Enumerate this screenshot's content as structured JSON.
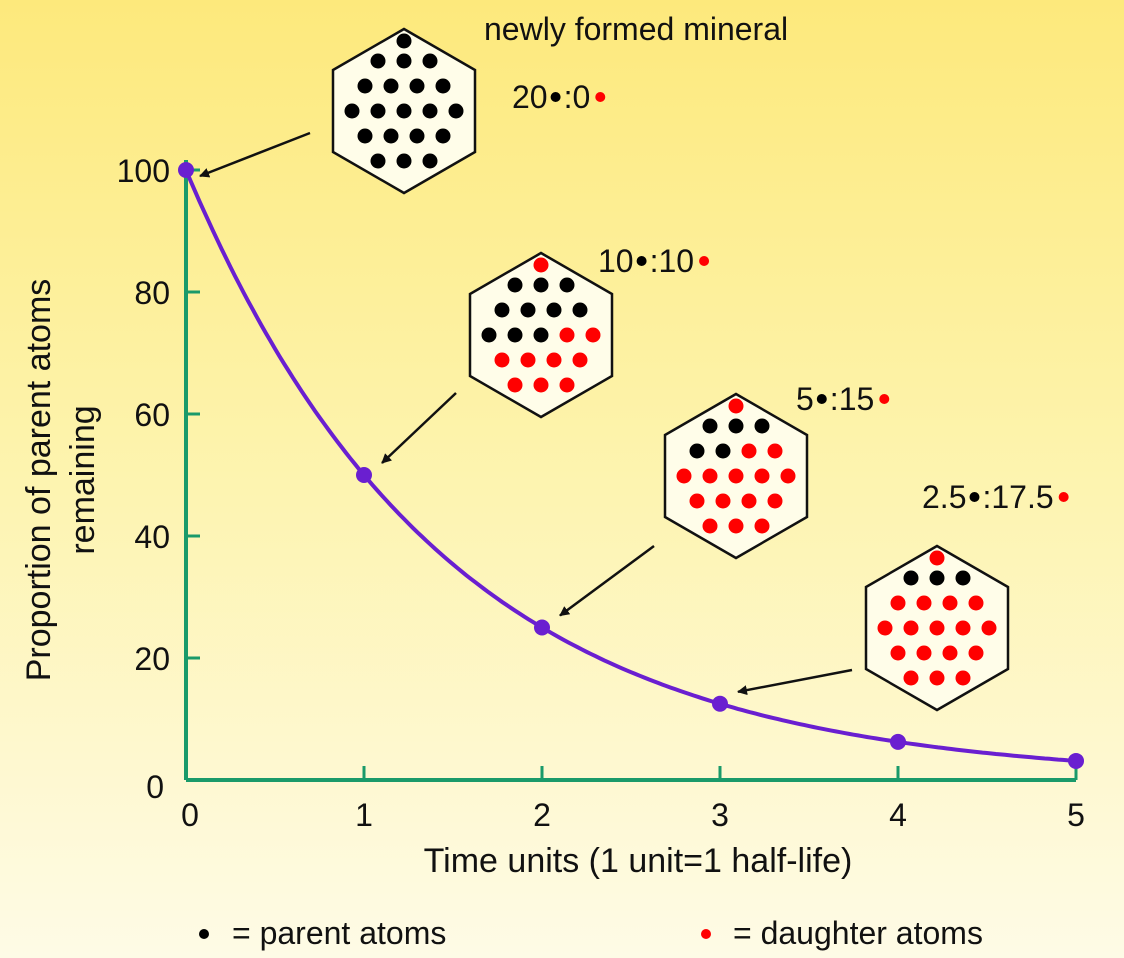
{
  "chart_data": {
    "type": "line",
    "title": "",
    "xlabel": "Time units (1 unit=1 half-life)",
    "ylabel_lines": [
      "Proportion of parent atoms",
      "remaining"
    ],
    "xlim": [
      0,
      5
    ],
    "ylim": [
      0,
      100
    ],
    "xticks": [
      "0",
      "1",
      "2",
      "3",
      "4",
      "5"
    ],
    "yticks": [
      "0",
      "20",
      "40",
      "60",
      "80",
      "100"
    ],
    "x": [
      0,
      1,
      2,
      3,
      4,
      5
    ],
    "values": [
      100,
      50,
      25,
      12.5,
      6.25,
      3.125
    ],
    "colors": {
      "curve": "#6a1fd0",
      "axis": "#1a9a6a",
      "parent": "#000000",
      "daughter": "#ff0000"
    },
    "annotations": [
      {
        "title": "newly formed mineral",
        "parent_text": "20",
        "daughter_text": ":0",
        "points_to_x": 0,
        "points_to_y": 100,
        "parent_count": 20,
        "daughter_count": 0
      },
      {
        "title": "",
        "parent_text": "10",
        "daughter_text": ":10",
        "points_to_x": 1,
        "points_to_y": 50,
        "parent_count": 10,
        "daughter_count": 10
      },
      {
        "title": "",
        "parent_text": "5",
        "daughter_text": ":15",
        "points_to_x": 2,
        "points_to_y": 25,
        "parent_count": 5,
        "daughter_count": 15
      },
      {
        "title": "",
        "parent_text": "2.5",
        "daughter_text": ":17.5",
        "points_to_x": 3,
        "points_to_y": 12.5,
        "parent_count": 2.5,
        "daughter_count": 17.5
      }
    ],
    "legend": {
      "parent_label": "= parent atoms",
      "daughter_label": "= daughter atoms",
      "placement": "bottom"
    },
    "grid": false
  }
}
